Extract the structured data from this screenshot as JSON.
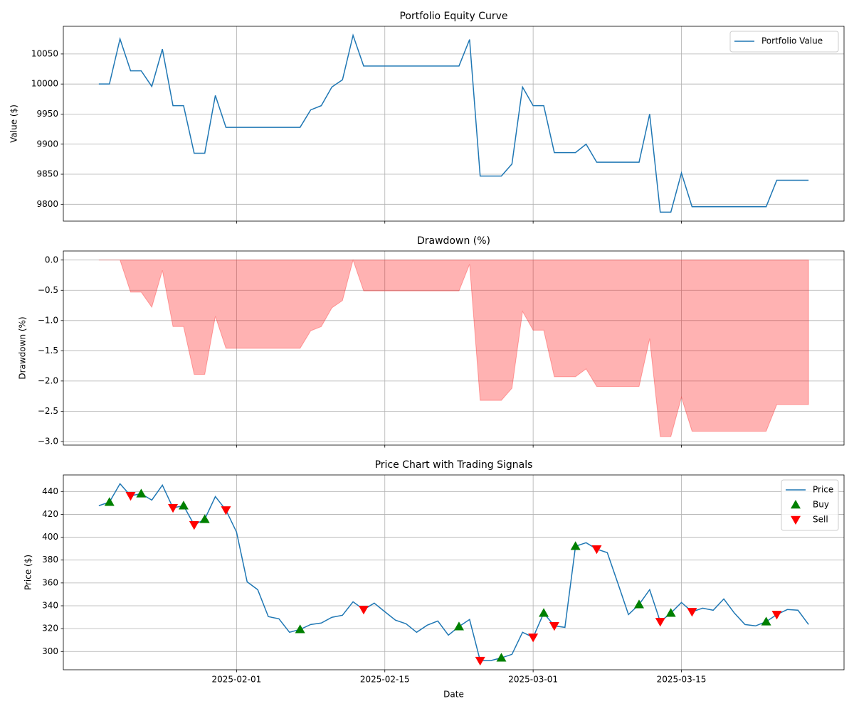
{
  "chart_data": [
    {
      "type": "line",
      "title": "Portfolio Equity Curve",
      "ylabel": "Value ($)",
      "x": [
        "2025-01-19",
        "2025-01-20",
        "2025-01-21",
        "2025-01-22",
        "2025-01-23",
        "2025-01-24",
        "2025-01-25",
        "2025-01-26",
        "2025-01-27",
        "2025-01-28",
        "2025-01-29",
        "2025-01-30",
        "2025-01-31",
        "2025-02-01",
        "2025-02-02",
        "2025-02-03",
        "2025-02-04",
        "2025-02-05",
        "2025-02-06",
        "2025-02-07",
        "2025-02-08",
        "2025-02-09",
        "2025-02-10",
        "2025-02-11",
        "2025-02-12",
        "2025-02-13",
        "2025-02-14",
        "2025-02-15",
        "2025-02-16",
        "2025-02-17",
        "2025-02-18",
        "2025-02-19",
        "2025-02-20",
        "2025-02-21",
        "2025-02-22",
        "2025-02-23",
        "2025-02-24",
        "2025-02-25",
        "2025-02-26",
        "2025-02-27",
        "2025-02-28",
        "2025-03-01",
        "2025-03-02",
        "2025-03-03",
        "2025-03-04",
        "2025-03-05",
        "2025-03-06",
        "2025-03-07",
        "2025-03-08",
        "2025-03-09",
        "2025-03-10",
        "2025-03-11",
        "2025-03-12",
        "2025-03-13",
        "2025-03-14",
        "2025-03-15",
        "2025-03-16",
        "2025-03-17",
        "2025-03-18",
        "2025-03-19",
        "2025-03-20",
        "2025-03-21",
        "2025-03-22",
        "2025-03-23",
        "2025-03-24",
        "2025-03-25",
        "2025-03-26",
        "2025-03-27"
      ],
      "series": [
        {
          "name": "Portfolio Value",
          "color": "#1f77b4",
          "values": [
            10000,
            10000,
            10075,
            10022,
            10022,
            9996,
            10058,
            9964,
            9964,
            9885,
            9885,
            9981,
            9928,
            9928,
            9928,
            9928,
            9928,
            9928,
            9928,
            9928,
            9957,
            9964,
            9995,
            10007,
            10081,
            10030,
            10030,
            10030,
            10030,
            10030,
            10030,
            10030,
            10030,
            10030,
            10030,
            10074,
            9847,
            9847,
            9847,
            9867,
            9995,
            9964,
            9964,
            9886,
            9886,
            9886,
            9900,
            9870,
            9870,
            9870,
            9870,
            9870,
            9950,
            9787,
            9787,
            9852,
            9796,
            9796,
            9796,
            9796,
            9796,
            9796,
            9796,
            9796,
            9840,
            9840,
            9840,
            9840
          ]
        }
      ],
      "xlim": [
        "2025-01-15T15:36:00Z",
        "2025-03-30T08:24:00Z"
      ],
      "xticks": [
        "2025-02-01",
        "2025-02-15",
        "2025-03-01",
        "2025-03-15"
      ],
      "show_xtick_labels": false,
      "ylim": [
        9772,
        10096
      ],
      "yticks": [
        9800,
        9850,
        9900,
        9950,
        10000,
        10050
      ],
      "grid": true,
      "legend": "upper right"
    },
    {
      "type": "area",
      "title": "Drawdown (%)",
      "ylabel": "Drawdown (%)",
      "x": [
        "2025-01-19",
        "2025-01-20",
        "2025-01-21",
        "2025-01-22",
        "2025-01-23",
        "2025-01-24",
        "2025-01-25",
        "2025-01-26",
        "2025-01-27",
        "2025-01-28",
        "2025-01-29",
        "2025-01-30",
        "2025-01-31",
        "2025-02-01",
        "2025-02-02",
        "2025-02-03",
        "2025-02-04",
        "2025-02-05",
        "2025-02-06",
        "2025-02-07",
        "2025-02-08",
        "2025-02-09",
        "2025-02-10",
        "2025-02-11",
        "2025-02-12",
        "2025-02-13",
        "2025-02-14",
        "2025-02-15",
        "2025-02-16",
        "2025-02-17",
        "2025-02-18",
        "2025-02-19",
        "2025-02-20",
        "2025-02-21",
        "2025-02-22",
        "2025-02-23",
        "2025-02-24",
        "2025-02-25",
        "2025-02-26",
        "2025-02-27",
        "2025-02-28",
        "2025-03-01",
        "2025-03-02",
        "2025-03-03",
        "2025-03-04",
        "2025-03-05",
        "2025-03-06",
        "2025-03-07",
        "2025-03-08",
        "2025-03-09",
        "2025-03-10",
        "2025-03-11",
        "2025-03-12",
        "2025-03-13",
        "2025-03-14",
        "2025-03-15",
        "2025-03-16",
        "2025-03-17",
        "2025-03-18",
        "2025-03-19",
        "2025-03-20",
        "2025-03-21",
        "2025-03-22",
        "2025-03-23",
        "2025-03-24",
        "2025-03-25",
        "2025-03-26",
        "2025-03-27"
      ],
      "series": [
        {
          "color": "#ff0000",
          "values": [
            0,
            0,
            0,
            -0.53,
            -0.53,
            -0.78,
            -0.17,
            -1.1,
            -1.1,
            -1.89,
            -1.89,
            -0.93,
            -1.46,
            -1.46,
            -1.46,
            -1.46,
            -1.46,
            -1.46,
            -1.46,
            -1.46,
            -1.17,
            -1.1,
            -0.79,
            -0.67,
            0,
            -0.51,
            -0.51,
            -0.51,
            -0.51,
            -0.51,
            -0.51,
            -0.51,
            -0.51,
            -0.51,
            -0.51,
            -0.07,
            -2.32,
            -2.32,
            -2.32,
            -2.12,
            -0.85,
            -1.16,
            -1.16,
            -1.93,
            -1.93,
            -1.93,
            -1.8,
            -2.09,
            -2.09,
            -2.09,
            -2.09,
            -2.09,
            -1.3,
            -2.92,
            -2.92,
            -2.27,
            -2.83,
            -2.83,
            -2.83,
            -2.83,
            -2.83,
            -2.83,
            -2.83,
            -2.83,
            -2.39,
            -2.39,
            -2.39,
            -2.39
          ]
        }
      ],
      "xlim": [
        "2025-01-15T15:36:00Z",
        "2025-03-30T08:24:00Z"
      ],
      "xticks": [
        "2025-02-01",
        "2025-02-15",
        "2025-03-01",
        "2025-03-15"
      ],
      "show_xtick_labels": false,
      "ylim": [
        -3.06,
        0.15
      ],
      "yticks": [
        {
          "value": -3.0,
          "label": "−3.0"
        },
        {
          "value": -2.5,
          "label": "−2.5"
        },
        {
          "value": -2.0,
          "label": "−2.0"
        },
        {
          "value": -1.5,
          "label": "−1.5"
        },
        {
          "value": -1.0,
          "label": "−1.0"
        },
        {
          "value": -0.5,
          "label": "−0.5"
        },
        {
          "value": 0,
          "label": "0.0"
        }
      ],
      "grid": true
    },
    {
      "type": "line",
      "title": "Price Chart with Trading Signals",
      "ylabel": "Price ($)",
      "xlabel": "Date",
      "x": [
        "2025-01-19",
        "2025-01-20",
        "2025-01-21",
        "2025-01-22",
        "2025-01-23",
        "2025-01-24",
        "2025-01-25",
        "2025-01-26",
        "2025-01-27",
        "2025-01-28",
        "2025-01-29",
        "2025-01-30",
        "2025-01-31",
        "2025-02-01",
        "2025-02-02",
        "2025-02-03",
        "2025-02-04",
        "2025-02-05",
        "2025-02-06",
        "2025-02-07",
        "2025-02-08",
        "2025-02-09",
        "2025-02-10",
        "2025-02-11",
        "2025-02-12",
        "2025-02-13",
        "2025-02-14",
        "2025-02-15",
        "2025-02-16",
        "2025-02-17",
        "2025-02-18",
        "2025-02-19",
        "2025-02-20",
        "2025-02-21",
        "2025-02-22",
        "2025-02-23",
        "2025-02-24",
        "2025-02-25",
        "2025-02-26",
        "2025-02-27",
        "2025-02-28",
        "2025-03-01",
        "2025-03-02",
        "2025-03-03",
        "2025-03-04",
        "2025-03-05",
        "2025-03-06",
        "2025-03-07",
        "2025-03-08",
        "2025-03-09",
        "2025-03-10",
        "2025-03-11",
        "2025-03-12",
        "2025-03-13",
        "2025-03-14",
        "2025-03-15",
        "2025-03-16",
        "2025-03-17",
        "2025-03-18",
        "2025-03-19",
        "2025-03-20",
        "2025-03-21",
        "2025-03-22",
        "2025-03-23",
        "2025-03-24",
        "2025-03-25",
        "2025-03-26",
        "2025-03-27"
      ],
      "series": [
        {
          "name": "Price",
          "color": "#1f77b4",
          "values": [
            427.6,
            430.7,
            446.8,
            436.3,
            438.1,
            432.5,
            445.6,
            425.7,
            427.6,
            410.8,
            415.7,
            435.6,
            423.8,
            404.5,
            361,
            354.1,
            330.5,
            328.6,
            316.8,
            319.3,
            323.6,
            324.9,
            329.9,
            331.7,
            343.5,
            336.7,
            342.3,
            334.8,
            327.4,
            324.3,
            316.8,
            323,
            326.7,
            314.3,
            321.8,
            328,
            292,
            292,
            294.4,
            297.5,
            316.8,
            312.4,
            333.6,
            322.4,
            321.1,
            392.1,
            395.2,
            389.6,
            386.5,
            359.7,
            332.3,
            341.1,
            354.1,
            326.1,
            333.6,
            342.9,
            334.8,
            337.9,
            336.1,
            346,
            333.6,
            323.6,
            322.4,
            326.1,
            332.3,
            336.7,
            336.1,
            323.6
          ]
        },
        {
          "name": "Buy",
          "type": "scatter",
          "marker": "^",
          "color": "#008000",
          "x": [
            "2025-01-20",
            "2025-01-23",
            "2025-01-27",
            "2025-01-29",
            "2025-02-07",
            "2025-02-22",
            "2025-02-26",
            "2025-03-02",
            "2025-03-05",
            "2025-03-11",
            "2025-03-14",
            "2025-03-23"
          ],
          "values": [
            430.7,
            438.1,
            427.6,
            415.7,
            319.3,
            321.8,
            294.4,
            333.6,
            392.1,
            341.1,
            333.6,
            326.1
          ]
        },
        {
          "name": "Sell",
          "type": "scatter",
          "marker": "v",
          "color": "#ff0000",
          "x": [
            "2025-01-22",
            "2025-01-26",
            "2025-01-28",
            "2025-01-31",
            "2025-02-13",
            "2025-02-24",
            "2025-03-01",
            "2025-03-03",
            "2025-03-07",
            "2025-03-13",
            "2025-03-16",
            "2025-03-24"
          ],
          "values": [
            436.3,
            425.7,
            410.8,
            423.8,
            336.7,
            292,
            312.4,
            322.4,
            389.6,
            326.1,
            334.8,
            332.3
          ]
        }
      ],
      "xlim": [
        "2025-01-15T15:36:00Z",
        "2025-03-30T08:24:00Z"
      ],
      "xticks": [
        "2025-02-01",
        "2025-02-15",
        "2025-03-01",
        "2025-03-15"
      ],
      "ylim": [
        284,
        454.5
      ],
      "yticks": [
        300,
        320,
        340,
        360,
        380,
        400,
        420,
        440
      ],
      "grid": true,
      "legend": "upper right"
    }
  ]
}
